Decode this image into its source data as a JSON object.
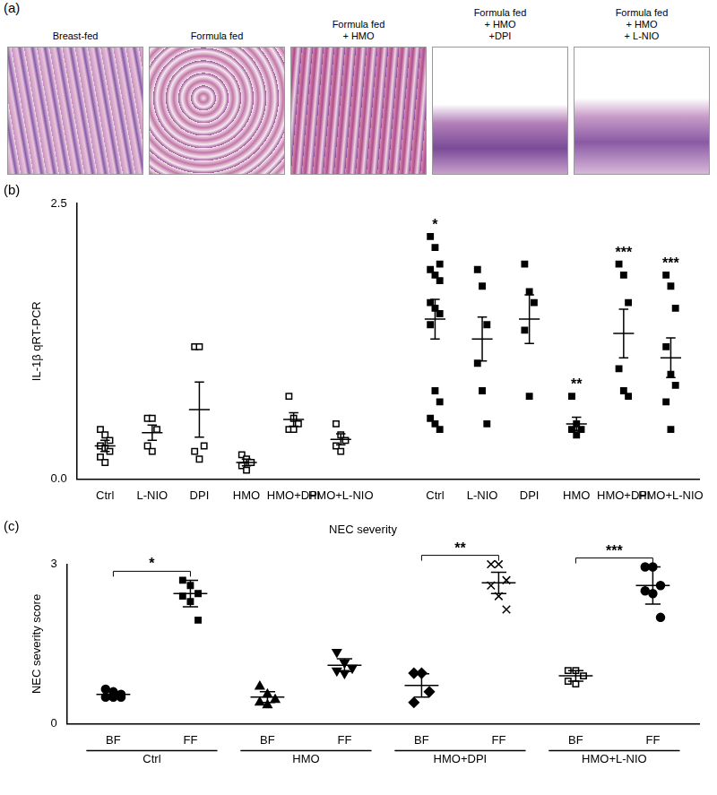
{
  "images": {
    "panel": "(a)",
    "captions": [
      [
        "Breast-fed"
      ],
      [
        "Formula fed"
      ],
      [
        "Formula fed",
        "+ HMO"
      ],
      [
        "Formula fed",
        "+ HMO",
        "+DPI"
      ],
      [
        "Formula fed",
        "+ HMO",
        "+ L-NIO"
      ]
    ]
  },
  "chart_data": [
    {
      "panel": "(b)",
      "type": "scatter",
      "y_label": "IL-1β qRT-PCR",
      "categories": [
        "Ctrl",
        "L-NIO",
        "DPI",
        "HMO",
        "HMO+DPI",
        "HMO+L-NIO",
        null,
        "Ctrl",
        "L-NIO",
        "DPI",
        "HMO",
        "HMO+DPI",
        "HMO+L-NIO"
      ],
      "ylim": [
        0,
        2.5
      ],
      "yticks": [
        {
          "value": 0,
          "label": "0.0"
        },
        2.5
      ],
      "grid": false,
      "series": [
        {
          "color": "#000000",
          "marker": "square_open",
          "values": [
            [
              0.45,
              0.4,
              0.35,
              0.3,
              0.28,
              0.25,
              0.2,
              0.15
            ],
            [
              0.55,
              0.55,
              0.45,
              0.3,
              0.25
            ],
            [
              1.2,
              1.2,
              0.3,
              0.25,
              0.18
            ],
            [
              0.22,
              0.18,
              0.15,
              0.12,
              0.08
            ],
            [
              0.75,
              0.55,
              0.5,
              0.45,
              0.45
            ],
            [
              0.5,
              0.4,
              0.35,
              0.3,
              0.25
            ],
            null,
            null,
            null,
            null,
            null,
            null,
            null
          ],
          "means": [
            0.3,
            0.42,
            0.63,
            0.15,
            0.54,
            0.36,
            null,
            null,
            null,
            null,
            null,
            null,
            null
          ],
          "errors": [
            0.05,
            0.07,
            0.25,
            0.03,
            0.06,
            0.05,
            null,
            null,
            null,
            null,
            null,
            null,
            null
          ]
        },
        {
          "color": "#000000",
          "marker": "square",
          "values": [
            null,
            null,
            null,
            null,
            null,
            null,
            null,
            [
              2.2,
              2.1,
              1.95,
              1.9,
              1.85,
              1.8,
              1.6,
              1.55,
              1.5,
              1.4,
              0.8,
              0.7,
              0.55,
              0.5,
              0.45
            ],
            [
              1.9,
              1.75,
              1.4,
              1.05,
              0.8,
              0.5
            ],
            [
              1.95,
              1.7,
              1.6,
              1.35,
              0.75
            ],
            [
              0.75,
              0.5,
              0.45,
              0.45,
              0.4
            ],
            [
              1.95,
              1.85,
              1.6,
              1.0,
              0.8,
              0.75
            ],
            [
              1.85,
              1.75,
              1.55,
              1.2,
              0.95,
              0.85,
              0.7,
              0.45
            ]
          ],
          "means": [
            null,
            null,
            null,
            null,
            null,
            null,
            null,
            1.45,
            1.27,
            1.45,
            0.5,
            1.32,
            1.1
          ],
          "errors": [
            null,
            null,
            null,
            null,
            null,
            null,
            null,
            0.18,
            0.2,
            0.22,
            0.06,
            0.22,
            0.18
          ],
          "annotations": [
            null,
            null,
            null,
            null,
            null,
            null,
            null,
            "*",
            null,
            null,
            "**",
            "***",
            "***"
          ]
        }
      ]
    },
    {
      "panel": "(c)",
      "type": "scatter",
      "title": "NEC severity",
      "y_label": "NEC severity score",
      "categories": [
        "BF",
        "FF",
        "BF",
        "FF",
        "BF",
        "FF",
        "BF",
        "FF"
      ],
      "groups": [
        "Ctrl",
        "HMO",
        "HMO+DPI",
        "HMO+L-NIO"
      ],
      "ylim": [
        0,
        3
      ],
      "yticks": [
        0,
        3
      ],
      "grid": false,
      "series": [
        {
          "color": "#000000",
          "marker": "circle",
          "values": [
            [
              0.65,
              0.6,
              0.55,
              0.5,
              0.5,
              0.5
            ],
            null,
            null,
            null,
            null,
            null,
            null,
            null
          ],
          "means": [
            0.55,
            null,
            null,
            null,
            null,
            null,
            null,
            null
          ],
          "errors": [
            0.05,
            null,
            null,
            null,
            null,
            null,
            null,
            null
          ]
        },
        {
          "color": "#000000",
          "marker": "square",
          "values": [
            null,
            [
              2.7,
              2.6,
              2.45,
              2.4,
              2.3,
              1.95
            ],
            null,
            null,
            null,
            null,
            null,
            null
          ],
          "means": [
            null,
            2.45,
            null,
            null,
            null,
            null,
            null,
            null
          ],
          "errors": [
            null,
            0.25,
            null,
            null,
            null,
            null,
            null,
            null
          ]
        },
        {
          "color": "#000000",
          "marker": "triangle",
          "values": [
            null,
            null,
            [
              0.7,
              0.55,
              0.45,
              0.4,
              0.35
            ],
            null,
            null,
            null,
            null,
            null
          ],
          "means": [
            null,
            null,
            0.5,
            null,
            null,
            null,
            null,
            null
          ],
          "errors": [
            null,
            null,
            0.1,
            null,
            null,
            null,
            null,
            null
          ]
        },
        {
          "color": "#000000",
          "marker": "triangle_down",
          "values": [
            null,
            null,
            null,
            [
              1.35,
              1.15,
              1.05,
              1.0,
              0.95
            ],
            null,
            null,
            null,
            null
          ],
          "means": [
            null,
            null,
            null,
            1.1,
            null,
            null,
            null,
            null
          ],
          "errors": [
            null,
            null,
            null,
            0.12,
            null,
            null,
            null,
            null
          ]
        },
        {
          "color": "#000000",
          "marker": "diamond",
          "values": [
            null,
            null,
            null,
            null,
            [
              0.95,
              0.95,
              0.6,
              0.4
            ],
            null,
            null,
            null
          ],
          "means": [
            null,
            null,
            null,
            null,
            0.72,
            null,
            null,
            null
          ],
          "errors": [
            null,
            null,
            null,
            null,
            0.22,
            null,
            null,
            null
          ]
        },
        {
          "color": "#000000",
          "marker": "x",
          "values": [
            null,
            null,
            null,
            null,
            null,
            [
              3.0,
              3.0,
              2.7,
              2.6,
              2.4,
              2.15
            ],
            null,
            null
          ],
          "means": [
            null,
            null,
            null,
            null,
            null,
            2.65,
            null,
            null
          ],
          "errors": [
            null,
            null,
            null,
            null,
            null,
            0.2,
            null,
            null
          ]
        },
        {
          "color": "#000000",
          "marker": "square_open",
          "values": [
            null,
            null,
            null,
            null,
            null,
            null,
            [
              1.0,
              1.0,
              0.9,
              0.8,
              0.75
            ],
            null
          ],
          "means": [
            null,
            null,
            null,
            null,
            null,
            null,
            0.9,
            null
          ],
          "errors": [
            null,
            null,
            null,
            null,
            null,
            null,
            0.1,
            null
          ]
        },
        {
          "color": "#000000",
          "marker": "circle",
          "values": [
            null,
            null,
            null,
            null,
            null,
            null,
            null,
            [
              2.95,
              2.95,
              2.6,
              2.5,
              2.45,
              2.0
            ]
          ],
          "means": [
            null,
            null,
            null,
            null,
            null,
            null,
            null,
            2.6
          ],
          "errors": [
            null,
            null,
            null,
            null,
            null,
            null,
            null,
            0.35
          ]
        }
      ],
      "annotations": [
        {
          "text": "*",
          "from": 0,
          "to": 1
        },
        {
          "text": "**",
          "from": 4,
          "to": 5
        },
        {
          "text": "***",
          "from": 6,
          "to": 7
        }
      ]
    }
  ]
}
